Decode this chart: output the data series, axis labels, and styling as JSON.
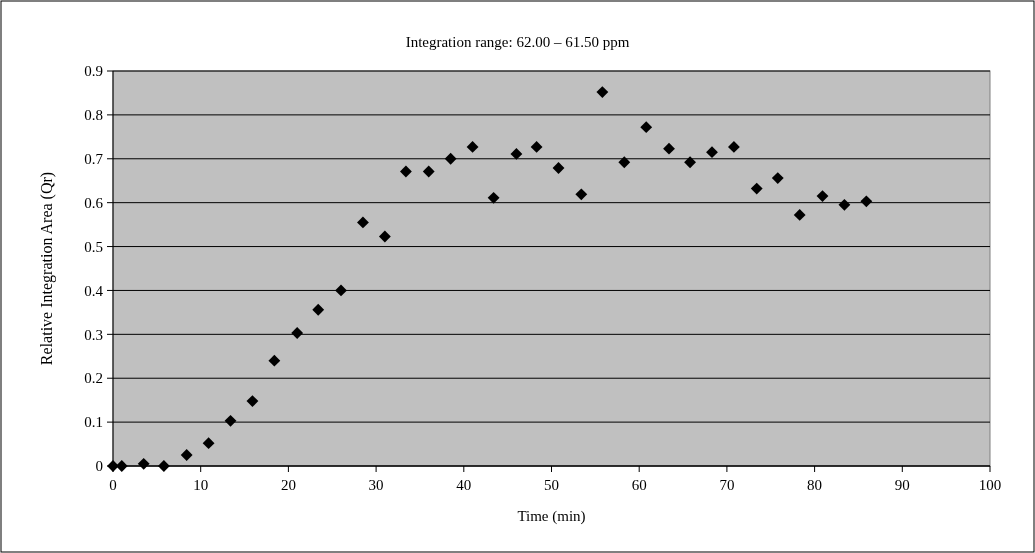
{
  "chart_data": {
    "type": "scatter",
    "title": "Integration range: 62.00 – 61.50 ppm",
    "xlabel": "Time (min)",
    "ylabel": "Relative Integration Area (Qr)",
    "x": [
      0,
      1,
      3.5,
      5.8,
      8.4,
      10.9,
      13.4,
      15.9,
      18.4,
      21,
      23.4,
      26,
      28.5,
      31,
      33.4,
      36,
      38.5,
      41,
      43.4,
      46,
      48.3,
      50.8,
      53.4,
      55.8,
      58.3,
      60.8,
      63.4,
      65.8,
      68.3,
      70.8,
      73.4,
      75.8,
      78.3,
      80.9,
      83.4,
      85.9
    ],
    "series": [
      {
        "color": "#000000",
        "values": [
          0,
          0,
          0.005,
          0,
          0.025,
          0.052,
          0.103,
          0.148,
          0.24,
          0.303,
          0.356,
          0.4,
          0.555,
          0.523,
          0.671,
          0.671,
          0.7,
          0.727,
          0.611,
          0.711,
          0.727,
          0.679,
          0.619,
          0.852,
          0.692,
          0.772,
          0.723,
          0.692,
          0.715,
          0.727,
          0.632,
          0.656,
          0.572,
          0.615,
          0.595,
          0.603
        ]
      }
    ],
    "xlim": [
      0,
      100
    ],
    "xticks": [
      0,
      10,
      20,
      30,
      40,
      50,
      60,
      70,
      80,
      90,
      100
    ],
    "ylim": [
      0,
      0.9
    ],
    "yticks": [
      0,
      0.1,
      0.2,
      0.3,
      0.4,
      0.5,
      0.6,
      0.7,
      0.8,
      0.9
    ],
    "grid": "y",
    "marker": "diamond"
  }
}
